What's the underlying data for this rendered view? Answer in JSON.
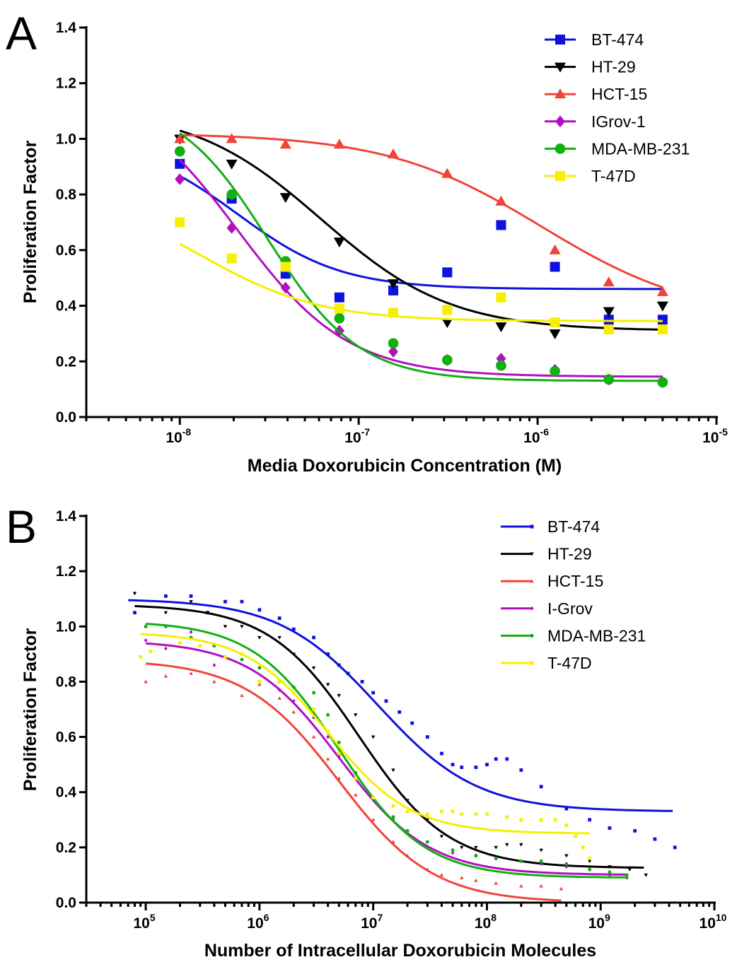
{
  "colors": {
    "BT": "#1010e0",
    "HT": "#000000",
    "HCT": "#f0443a",
    "IG": "#b010c0",
    "MDA": "#10b010",
    "T47": "#f4f000"
  },
  "chart_data": [
    {
      "panel": "A",
      "type": "scatter",
      "xscale": "log",
      "xlabel": "Media Doxorubicin Concentration (M)",
      "ylabel": "Proliferation Factor",
      "xlim": [
        3e-09,
        1e-05
      ],
      "ylim": [
        0,
        1.4
      ],
      "xticks": [
        {
          "base": "10",
          "exp": "-8"
        },
        {
          "base": "10",
          "exp": "-7"
        },
        {
          "base": "10",
          "exp": "-6"
        },
        {
          "base": "10",
          "exp": "-5"
        }
      ],
      "yticks": [
        "0.0",
        "0.2",
        "0.4",
        "0.6",
        "0.8",
        "1.0",
        "1.2",
        "1.4"
      ],
      "legend_position": "top-right",
      "series": [
        {
          "name": "BT-474",
          "color_key": "BT",
          "marker": "square",
          "x": [
            1e-08,
            1.95e-08,
            3.9e-08,
            7.8e-08,
            1.56e-07,
            3.125e-07,
            6.25e-07,
            1.25e-06,
            2.5e-06,
            5e-06
          ],
          "y": [
            0.91,
            0.785,
            0.515,
            0.43,
            0.455,
            0.52,
            0.69,
            0.54,
            0.35,
            0.35
          ],
          "fit": {
            "top": 1.0,
            "bottom": 0.46,
            "ec50": 2.1e-08,
            "hill": 1.5
          }
        },
        {
          "name": "HT-29",
          "color_key": "HT",
          "marker": "triangle-down",
          "x": [
            1e-08,
            1.95e-08,
            3.9e-08,
            7.8e-08,
            1.56e-07,
            3.125e-07,
            6.25e-07,
            1.25e-06,
            2.5e-06,
            5e-06
          ],
          "y": [
            1.0,
            0.91,
            0.79,
            0.63,
            0.48,
            0.34,
            0.325,
            0.3,
            0.38,
            0.4
          ],
          "fit": {
            "top": 1.11,
            "bottom": 0.31,
            "ec50": 6.2e-08,
            "hill": 1.2
          }
        },
        {
          "name": "HCT-15",
          "color_key": "HCT",
          "marker": "triangle-up",
          "x": [
            1e-08,
            1.95e-08,
            3.9e-08,
            7.8e-08,
            1.56e-07,
            3.125e-07,
            6.25e-07,
            1.25e-06,
            2.5e-06,
            5e-06
          ],
          "y": [
            1.0,
            1.0,
            0.98,
            0.98,
            0.945,
            0.875,
            0.775,
            0.6,
            0.485,
            0.45
          ],
          "fit": {
            "top": 1.02,
            "bottom": 0.35,
            "ec50": 1.05e-06,
            "hill": 1.0
          }
        },
        {
          "name": "IGrov-1",
          "color_key": "IG",
          "marker": "diamond",
          "x": [
            1e-08,
            1.95e-08,
            3.9e-08,
            7.8e-08,
            1.56e-07,
            3.125e-07,
            6.25e-07,
            1.25e-06,
            2.5e-06,
            5e-06
          ],
          "y": [
            0.855,
            0.68,
            0.465,
            0.31,
            0.235,
            0.205,
            0.21,
            0.17,
            0.135,
            0.125
          ],
          "fit": {
            "top": 1.2,
            "bottom": 0.145,
            "ec50": 2.1e-08,
            "hill": 1.4
          }
        },
        {
          "name": "MDA-MB-231",
          "color_key": "MDA",
          "marker": "circle",
          "x": [
            1e-08,
            1.95e-08,
            3.9e-08,
            7.8e-08,
            1.56e-07,
            3.125e-07,
            6.25e-07,
            1.25e-06,
            2.5e-06,
            5e-06
          ],
          "y": [
            0.955,
            0.8,
            0.56,
            0.355,
            0.265,
            0.205,
            0.185,
            0.165,
            0.135,
            0.125
          ],
          "fit": {
            "top": 1.15,
            "bottom": 0.13,
            "ec50": 3.1e-08,
            "hill": 1.7
          }
        },
        {
          "name": "T-47D",
          "color_key": "T47",
          "marker": "square",
          "x": [
            1e-08,
            1.95e-08,
            3.9e-08,
            7.8e-08,
            1.56e-07,
            3.125e-07,
            6.25e-07,
            1.25e-06,
            2.5e-06,
            5e-06
          ],
          "y": [
            0.7,
            0.57,
            0.54,
            0.39,
            0.375,
            0.385,
            0.43,
            0.34,
            0.315,
            0.315
          ],
          "fit": {
            "top": 0.82,
            "bottom": 0.345,
            "ec50": 1.3e-08,
            "hill": 1.3
          }
        }
      ]
    },
    {
      "panel": "B",
      "type": "line",
      "xscale": "log",
      "xlabel": "Number of Intracellular Doxorubicin Molecules",
      "ylabel": "Proliferation Factor",
      "xlim": [
        30000.0,
        10000000000.0
      ],
      "ylim": [
        0,
        1.4
      ],
      "xticks": [
        {
          "base": "10",
          "exp": "5"
        },
        {
          "base": "10",
          "exp": "6"
        },
        {
          "base": "10",
          "exp": "7"
        },
        {
          "base": "10",
          "exp": "8"
        },
        {
          "base": "10",
          "exp": "9"
        },
        {
          "base": "10",
          "exp": "10"
        }
      ],
      "yticks": [
        "0.0",
        "0.2",
        "0.4",
        "0.6",
        "0.8",
        "1.0",
        "1.2",
        "1.4"
      ],
      "legend_position": "top-right",
      "series": [
        {
          "name": "BT-474",
          "color_key": "BT",
          "marker": "square",
          "fit": {
            "top": 1.1,
            "bottom": 0.33,
            "ec50": 11000000.0,
            "hill": 1.0,
            "xmin": 70000.0,
            "xmax": 4300000000.0
          },
          "x": [
            80000.0,
            150000.0,
            250000.0,
            350000.0,
            500000.0,
            700000.0,
            1000000.0,
            1500000.0,
            2000000.0,
            3000000.0,
            4000000.0,
            5000000.0,
            6000000.0,
            8000000.0,
            10000000.0,
            13000000.0,
            17000000.0,
            22000000.0,
            30000000.0,
            40000000.0,
            50000000.0,
            60000000.0,
            80000000.0,
            100000000.0,
            120000000.0,
            150000000.0,
            200000000.0,
            300000000.0,
            500000000.0,
            800000000.0,
            1200000000.0,
            2000000000.0,
            3000000000.0,
            4500000000.0
          ],
          "y": [
            1.05,
            1.11,
            1.11,
            1.05,
            1.09,
            1.09,
            1.06,
            1.03,
            0.99,
            0.96,
            0.9,
            0.86,
            0.83,
            0.8,
            0.76,
            0.73,
            0.69,
            0.65,
            0.6,
            0.54,
            0.5,
            0.49,
            0.49,
            0.5,
            0.52,
            0.52,
            0.48,
            0.42,
            0.34,
            0.3,
            0.27,
            0.26,
            0.23,
            0.2
          ]
        },
        {
          "name": "HT-29",
          "color_key": "HT",
          "marker": "triangle-down",
          "fit": {
            "top": 1.08,
            "bottom": 0.125,
            "ec50": 7500000.0,
            "hill": 1.1,
            "xmin": 80000.0,
            "xmax": 2400000000.0
          },
          "x": [
            80000.0,
            150000.0,
            250000.0,
            350000.0,
            500000.0,
            700000.0,
            1000000.0,
            1500000.0,
            2000000.0,
            3000000.0,
            4000000.0,
            5000000.0,
            7000000.0,
            10000000.0,
            15000000.0,
            20000000.0,
            30000000.0,
            40000000.0,
            60000000.0,
            80000000.0,
            120000000.0,
            150000000.0,
            200000000.0,
            300000000.0,
            500000000.0,
            800000000.0,
            1200000000.0,
            1800000000.0,
            2500000000.0
          ],
          "y": [
            1.12,
            1.05,
            1.09,
            1.05,
            1.0,
            1.0,
            0.96,
            0.96,
            0.9,
            0.85,
            0.79,
            0.75,
            0.68,
            0.6,
            0.48,
            0.37,
            0.3,
            0.24,
            0.2,
            0.2,
            0.2,
            0.21,
            0.21,
            0.19,
            0.17,
            0.15,
            0.13,
            0.12,
            0.1
          ]
        },
        {
          "name": "HCT-15",
          "color_key": "HCT",
          "marker": "triangle-up",
          "fit": {
            "top": 0.88,
            "bottom": 0.0,
            "ec50": 5000000.0,
            "hill": 1.05,
            "xmin": 100000.0,
            "xmax": 450000000.0
          },
          "x": [
            100000.0,
            150000.0,
            250000.0,
            400000.0,
            700000.0,
            1000000.0,
            1500000.0,
            2000000.0,
            3000000.0,
            4000000.0,
            5000000.0,
            7000000.0,
            10000000.0,
            15000000.0,
            20000000.0,
            30000000.0,
            40000000.0,
            60000000.0,
            80000000.0,
            120000000.0,
            200000000.0,
            300000000.0,
            450000000.0
          ],
          "y": [
            0.8,
            0.82,
            0.83,
            0.8,
            0.75,
            0.79,
            0.74,
            0.69,
            0.6,
            0.52,
            0.45,
            0.39,
            0.3,
            0.22,
            0.17,
            0.12,
            0.1,
            0.09,
            0.08,
            0.07,
            0.06,
            0.06,
            0.05
          ]
        },
        {
          "name": "I-Grov",
          "color_key": "IG",
          "marker": "diamond",
          "fit": {
            "top": 0.95,
            "bottom": 0.1,
            "ec50": 5000000.0,
            "hill": 1.1,
            "xmin": 100000.0,
            "xmax": 1700000000.0
          },
          "x": [
            100000.0,
            150000.0,
            250000.0,
            400000.0,
            700000.0,
            1000000.0,
            1500000.0,
            2000000.0,
            3000000.0,
            4000000.0,
            5000000.0,
            7000000.0,
            10000000.0,
            15000000.0,
            20000000.0,
            30000000.0,
            50000000.0,
            80000000.0,
            120000000.0,
            200000000.0,
            300000000.0,
            500000000.0,
            800000000.0,
            1200000000.0,
            1700000000.0
          ],
          "y": [
            0.95,
            0.92,
            0.98,
            0.86,
            0.9,
            0.85,
            0.77,
            0.73,
            0.67,
            0.6,
            0.53,
            0.47,
            0.38,
            0.3,
            0.25,
            0.2,
            0.18,
            0.17,
            0.16,
            0.15,
            0.14,
            0.13,
            0.12,
            0.1,
            0.09
          ]
        },
        {
          "name": "MDA-MB-231",
          "color_key": "MDA",
          "marker": "circle",
          "fit": {
            "top": 1.02,
            "bottom": 0.09,
            "ec50": 5000000.0,
            "hill": 1.15,
            "xmin": 100000.0,
            "xmax": 1700000000.0
          },
          "x": [
            100000.0,
            150000.0,
            250000.0,
            400000.0,
            700000.0,
            1000000.0,
            1500000.0,
            2000000.0,
            3000000.0,
            4000000.0,
            5000000.0,
            7000000.0,
            10000000.0,
            15000000.0,
            20000000.0,
            30000000.0,
            50000000.0,
            80000000.0,
            120000000.0,
            200000000.0,
            300000000.0,
            500000000.0,
            800000000.0,
            1200000000.0,
            1700000000.0
          ],
          "y": [
            1.0,
            1.0,
            0.96,
            0.93,
            0.88,
            0.85,
            0.8,
            0.78,
            0.76,
            0.68,
            0.58,
            0.47,
            0.38,
            0.31,
            0.26,
            0.22,
            0.19,
            0.17,
            0.16,
            0.15,
            0.15,
            0.14,
            0.12,
            0.11,
            0.1
          ]
        },
        {
          "name": "T-47D",
          "color_key": "T47",
          "marker": "square",
          "fit": {
            "top": 0.98,
            "bottom": 0.25,
            "ec50": 4000000.0,
            "hill": 1.2,
            "xmin": 90000.0,
            "xmax": 800000000.0
          },
          "x": [
            90000.0,
            110000.0,
            200000.0,
            300000.0,
            500000.0,
            700000.0,
            1000000.0,
            1500000.0,
            2000000.0,
            3000000.0,
            4000000.0,
            5000000.0,
            7000000.0,
            10000000.0,
            15000000.0,
            20000000.0,
            30000000.0,
            40000000.0,
            50000000.0,
            60000000.0,
            80000000.0,
            100000000.0,
            150000000.0,
            200000000.0,
            300000000.0,
            400000000.0,
            500000000.0,
            600000000.0,
            700000000.0,
            800000000.0
          ],
          "y": [
            0.89,
            0.91,
            0.94,
            0.93,
            0.89,
            0.9,
            0.8,
            0.8,
            0.76,
            0.7,
            0.62,
            0.54,
            0.45,
            0.38,
            0.35,
            0.33,
            0.32,
            0.33,
            0.33,
            0.32,
            0.32,
            0.32,
            0.31,
            0.3,
            0.3,
            0.3,
            0.28,
            0.24,
            0.2,
            0.16
          ]
        }
      ]
    }
  ]
}
